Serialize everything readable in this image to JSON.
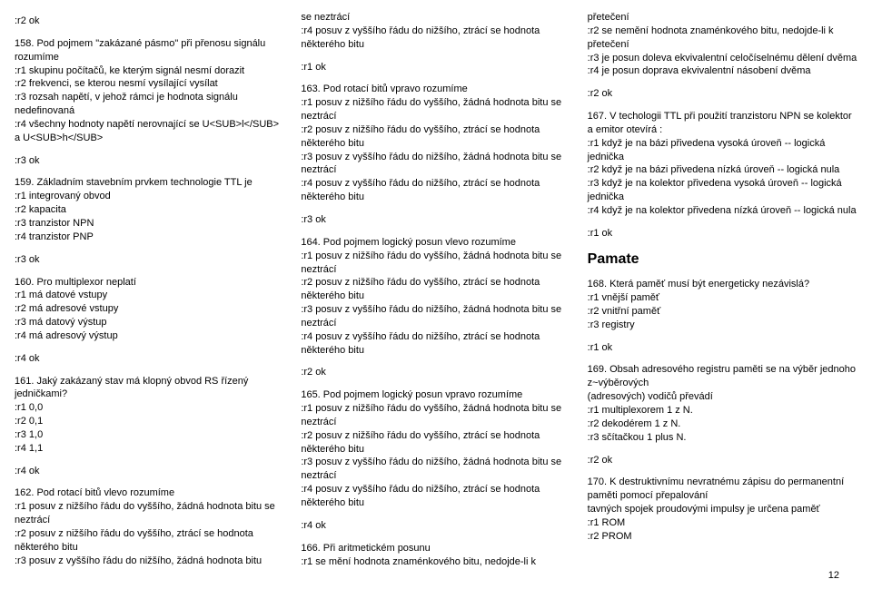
{
  "col1": {
    "a157": ":r2 ok",
    "q158": "158. Pod pojmem \"zakázané pásmo\" při přenosu signálu rozumíme",
    "q158_opts": [
      ":r1 skupinu počítačů, ke kterým signál nesmí dorazit",
      ":r2 frekvenci, se kterou nesmí vysílající vysílat",
      ":r3 rozsah napětí, v jehož rámci je hodnota signálu nedefinovaná",
      ":r4 všechny hodnoty napětí nerovnající se U<SUB>l</SUB> a U<SUB>h</SUB>"
    ],
    "a158": ":r3 ok",
    "q159": "159. Základním stavebním prvkem technologie TTL je",
    "q159_opts": [
      ":r1 integrovaný obvod",
      ":r2 kapacita",
      ":r3 tranzistor NPN",
      ":r4 tranzistor PNP"
    ],
    "a159": ":r3 ok",
    "q160": "160. Pro multiplexor neplatí",
    "q160_opts": [
      ":r1 má datové vstupy",
      ":r2 má adresové vstupy",
      ":r3 má datový výstup",
      ":r4 má adresový výstup"
    ],
    "a160": ":r4 ok",
    "q161": "161. Jaký zakázaný stav má klopný obvod RS řízený jedničkami?",
    "q161_opts": [
      ":r1 0,0",
      ":r2 0,1",
      ":r3 1,0",
      ":r4 1,1"
    ],
    "a161": ":r4 ok",
    "q162": "162. Pod rotací bitů vlevo rozumíme",
    "q162_opts": [
      ":r1 posuv z nižšího řádu do vyššího, žádná hodnota bitu se neztrácí",
      ":r2 posuv z nižšího řádu do vyššího, ztrácí se hodnota některého bitu",
      ":r3 posuv z vyššího řádu do nižšího, žádná hodnota bitu"
    ]
  },
  "col2": {
    "q162_cont": [
      "se neztrácí",
      ":r4 posuv z vyššího řádu do nižšího, ztrácí se hodnota některého bitu"
    ],
    "a162": ":r1 ok",
    "q163": "163. Pod rotací bitů vpravo rozumíme",
    "q163_opts": [
      ":r1 posuv z nižšího řádu do vyššího, žádná hodnota bitu se neztrácí",
      ":r2 posuv z nižšího řádu do vyššího, ztrácí se hodnota některého bitu",
      ":r3 posuv z vyššího řádu do nižšího, žádná hodnota bitu se neztrácí",
      ":r4 posuv z vyššího řádu do nižšího, ztrácí se hodnota některého bitu"
    ],
    "a163": ":r3 ok",
    "q164": "164. Pod pojmem logický posun vlevo rozumíme",
    "q164_opts": [
      ":r1 posuv z nižšího řádu do vyššího, žádná hodnota bitu se neztrácí",
      ":r2 posuv z nižšího řádu do vyššího, ztrácí se hodnota některého bitu",
      ":r3 posuv z vyššího řádu do nižšího, žádná hodnota bitu se neztrácí",
      ":r4 posuv z vyššího řádu do nižšího, ztrácí se hodnota některého bitu"
    ],
    "a164": ":r2 ok",
    "q165": "165. Pod pojmem logický posun vpravo rozumíme",
    "q165_opts": [
      ":r1 posuv z nižšího řádu do vyššího, žádná hodnota bitu se neztrácí",
      ":r2 posuv z nižšího řádu do vyššího, ztrácí se hodnota některého bitu",
      ":r3 posuv z vyššího řádu do nižšího, žádná hodnota bitu se neztrácí",
      ":r4 posuv z vyššího řádu do nižšího, ztrácí se hodnota některého bitu"
    ],
    "a165": ":r4 ok",
    "q166": "166. Při aritmetickém posunu",
    "q166_opts": [
      ":r1 se mění hodnota znaménkového bitu, nedojde-li k"
    ]
  },
  "col3": {
    "q166_cont": [
      "přetečení",
      ":r2 se nemění hodnota znaménkového bitu, nedojde-li k přetečení",
      ":r3 je posun doleva ekvivalentní celočíselnému dělení dvěma",
      ":r4 je posun doprava ekvivalentní násobení dvěma"
    ],
    "a166": ":r2 ok",
    "q167": "167. V techologii TTL při použití tranzistoru NPN se kolektor a emitor otevírá :",
    "q167_opts": [
      ":r1 když je na bázi přivedena vysoká úroveň -- logická jednička",
      ":r2 když je na bázi přivedena nízká úroveň -- logická nula",
      ":r3 když je na kolektor přivedena vysoká úroveň -- logická jednička",
      ":r4 když je na kolektor přivedena nízká úroveň -- logická nula"
    ],
    "a167": ":r1 ok",
    "heading": "Pamate",
    "q168": "168. Která paměť musí být energeticky nezávislá?",
    "q168_opts": [
      ":r1 vnější paměť",
      ":r2 vnitřní paměť",
      ":r3 registry"
    ],
    "a168": ":r1 ok",
    "q169": "169. Obsah adresového registru paměti se na výběr jednoho z~výběrových",
    "q169_sub": "(adresových) vodičů převádí",
    "q169_opts": [
      ":r1 multiplexorem 1 z N.",
      ":r2 dekodérem 1 z N.",
      ":r3 sčítačkou 1 plus N."
    ],
    "a169": ":r2 ok",
    "q170": "170. K destruktivnímu nevratnému zápisu do permanentní paměti pomocí přepalování",
    "q170_sub": "tavných spojek proudovými impulsy je určena paměť",
    "q170_opts": [
      ":r1 ROM",
      ":r2 PROM"
    ]
  },
  "pagenum": "12"
}
